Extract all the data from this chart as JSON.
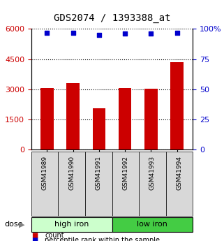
{
  "title": "GDS2074 / 1393388_at",
  "samples": [
    "GSM41989",
    "GSM41990",
    "GSM41991",
    "GSM41992",
    "GSM41993",
    "GSM41994"
  ],
  "bar_values": [
    3060,
    3300,
    2050,
    3060,
    3010,
    4360
  ],
  "percentile_values": [
    97,
    97,
    95,
    96,
    96,
    97
  ],
  "bar_color": "#cc0000",
  "dot_color": "#0000cc",
  "ylim_left": [
    0,
    6000
  ],
  "ylim_right": [
    0,
    100
  ],
  "yticks_left": [
    0,
    1500,
    3000,
    4500,
    6000
  ],
  "yticks_right": [
    0,
    25,
    50,
    75,
    100
  ],
  "ytick_right_labels": [
    "0",
    "25",
    "50",
    "75",
    "100%"
  ],
  "groups": [
    {
      "label": "high iron",
      "indices": [
        0,
        1,
        2
      ],
      "color": "#ccffcc"
    },
    {
      "label": "low iron",
      "indices": [
        3,
        4,
        5
      ],
      "color": "#44cc44"
    }
  ],
  "ylabel_left_color": "#cc0000",
  "ylabel_right_color": "#0000cc",
  "legend_count_label": "count",
  "legend_pct_label": "percentile rank within the sample",
  "dose_label": "dose",
  "background_color": "#ffffff",
  "sample_box_color": "#d8d8d8"
}
